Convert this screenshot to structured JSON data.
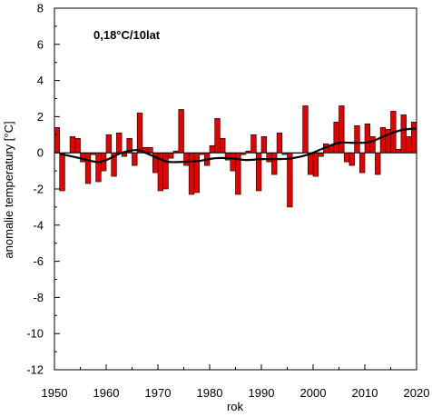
{
  "chart_data": {
    "type": "bar",
    "annotation": "0,18°C/10lat",
    "xlabel": "rok",
    "ylabel": "anomalie temperatury [°C]",
    "xlim": [
      1950,
      2020
    ],
    "ylim": [
      -12,
      8
    ],
    "x_ticks": [
      "1950",
      "1960",
      "1970",
      "1980",
      "1990",
      "2000",
      "2010",
      "2020"
    ],
    "y_ticks": [
      "8",
      "6",
      "4",
      "2",
      "0",
      "-2",
      "-4",
      "-6",
      "-8",
      "-10",
      "-12"
    ],
    "grid": false,
    "bar_color": "#e60000",
    "bar_edge_color": "#000000",
    "trend_color": "#000000",
    "bars": {
      "years": [
        1951,
        1952,
        1953,
        1954,
        1955,
        1956,
        1957,
        1958,
        1959,
        1960,
        1961,
        1962,
        1963,
        1964,
        1965,
        1966,
        1967,
        1968,
        1969,
        1970,
        1971,
        1972,
        1973,
        1974,
        1975,
        1976,
        1977,
        1978,
        1979,
        1980,
        1981,
        1982,
        1983,
        1984,
        1985,
        1986,
        1987,
        1988,
        1989,
        1990,
        1991,
        1992,
        1993,
        1994,
        1995,
        1996,
        1997,
        1998,
        1999,
        2000,
        2001,
        2002,
        2003,
        2004,
        2005,
        2006,
        2007,
        2008,
        2009,
        2010,
        2011,
        2012,
        2013,
        2014,
        2015,
        2016,
        2017,
        2018,
        2019,
        2020
      ],
      "values": [
        1.4,
        -2.1,
        0.0,
        0.9,
        0.8,
        -0.5,
        -1.7,
        -0.1,
        -1.6,
        -1.0,
        1.0,
        -1.3,
        1.1,
        -0.2,
        0.8,
        -0.7,
        2.2,
        0.3,
        0.3,
        -1.1,
        -2.1,
        -2.0,
        -0.3,
        0.1,
        2.4,
        -0.7,
        -2.3,
        -2.2,
        -0.1,
        -0.7,
        0.4,
        1.9,
        0.8,
        -0.4,
        -1.0,
        -2.3,
        -0.1,
        0.1,
        1.0,
        -2.1,
        0.9,
        -0.5,
        -1.2,
        1.1,
        -0.1,
        -3.0,
        0.0,
        0.0,
        2.6,
        -1.2,
        -1.3,
        -0.2,
        0.5,
        0.4,
        1.7,
        2.6,
        -0.5,
        -0.7,
        1.5,
        -1.1,
        1.6,
        0.9,
        -1.2,
        1.4,
        1.3,
        2.3,
        0.2,
        2.1,
        0.9,
        1.7
      ]
    },
    "trend": {
      "x": [
        1951,
        1955,
        1958,
        1960,
        1963,
        1966,
        1968,
        1970,
        1972,
        1975,
        1978,
        1981,
        1984,
        1987,
        1990,
        1993,
        1996,
        1999,
        2002,
        2005,
        2008,
        2011,
        2014,
        2017,
        2020
      ],
      "y": [
        -0.05,
        -0.3,
        -0.5,
        -0.4,
        0.0,
        0.15,
        -0.05,
        -0.3,
        -0.5,
        -0.5,
        -0.45,
        -0.3,
        -0.3,
        -0.4,
        -0.35,
        -0.35,
        -0.3,
        -0.1,
        0.25,
        0.55,
        0.55,
        0.6,
        0.95,
        1.25,
        1.35
      ]
    }
  }
}
